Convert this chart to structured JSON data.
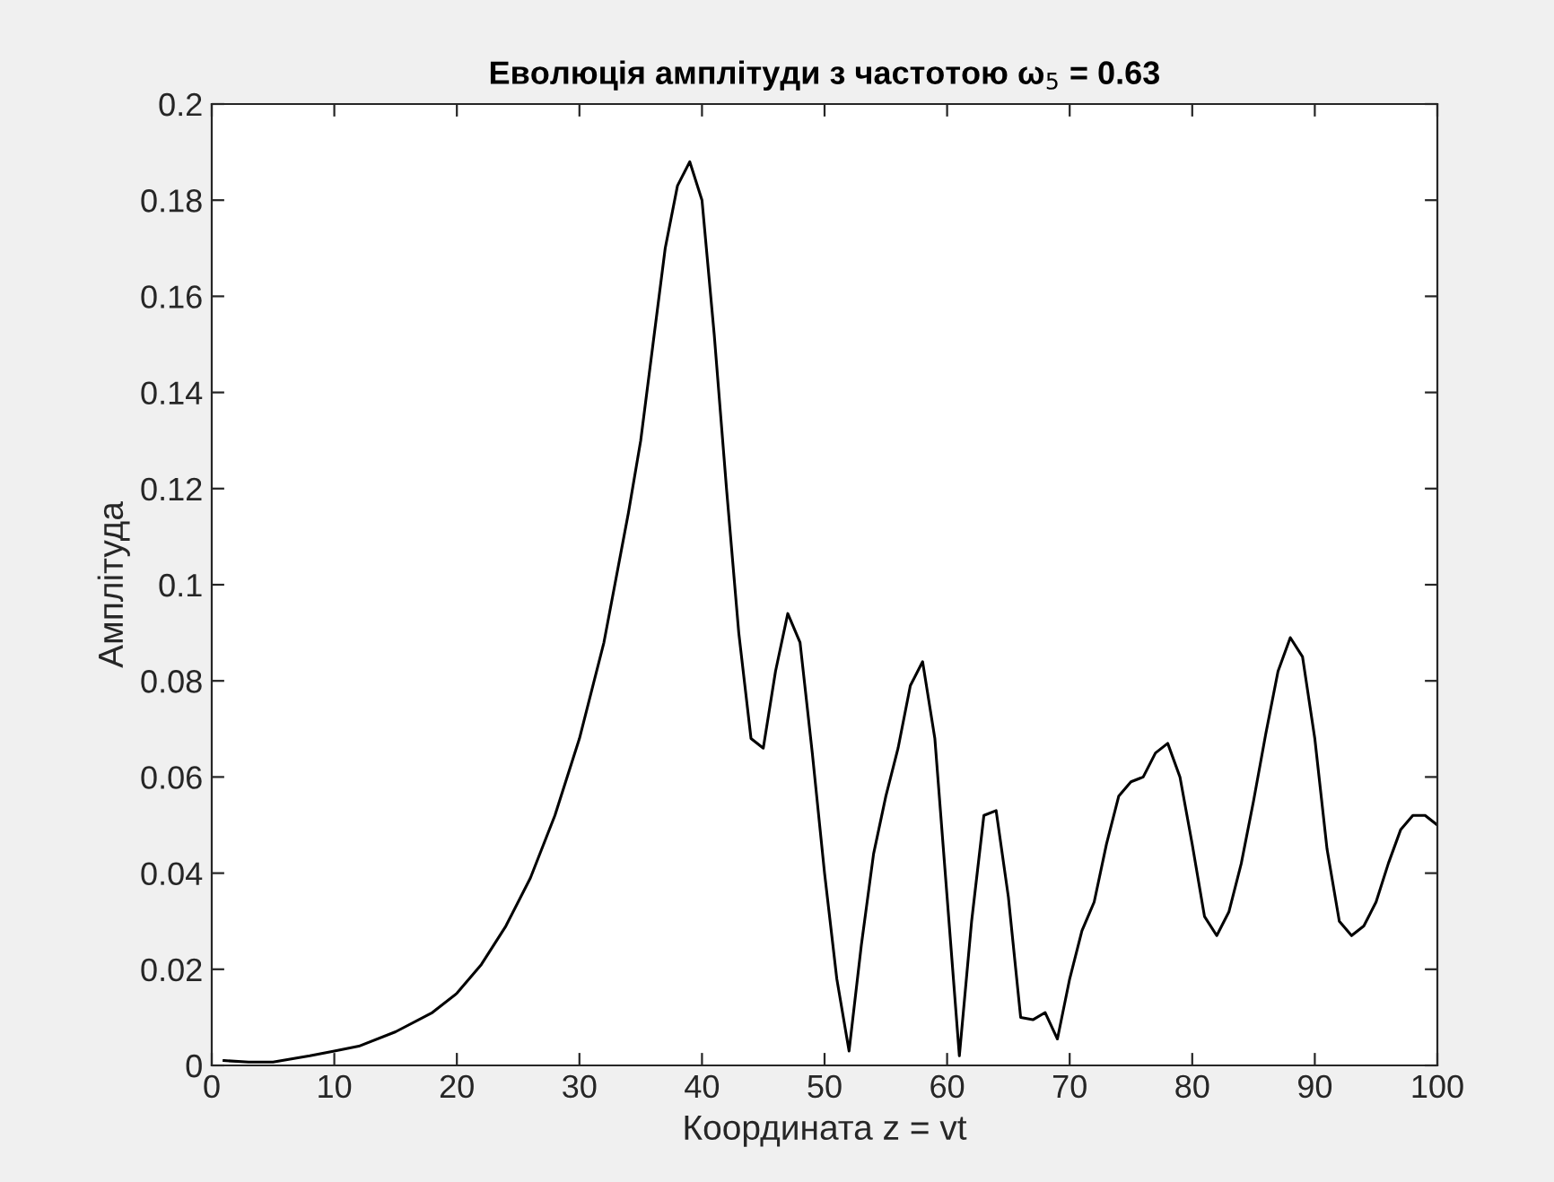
{
  "chart_data": {
    "type": "line",
    "title": "Еволюція амплітуди з частотою ω$_{5}$ = 0.63",
    "xlabel": "Координата z = vt",
    "ylabel": "Амплітуда",
    "x": [
      1,
      3,
      5,
      8,
      10,
      12,
      15,
      18,
      20,
      22,
      24,
      26,
      28,
      30,
      32,
      34,
      35,
      36,
      37,
      38,
      39,
      40,
      41,
      42,
      43,
      44,
      45,
      46,
      47,
      48,
      49,
      50,
      51,
      52,
      53,
      54,
      55,
      56,
      57,
      58,
      59,
      60,
      61,
      62,
      63,
      64,
      65,
      66,
      67,
      68,
      69,
      70,
      71,
      72,
      73,
      74,
      75,
      76,
      77,
      78,
      79,
      80,
      81,
      82,
      83,
      84,
      85,
      86,
      87,
      88,
      89,
      90,
      91,
      92,
      93,
      94,
      95,
      96,
      97,
      98,
      99,
      100
    ],
    "series": [
      {
        "color": "#000000",
        "values": [
          0.001,
          0.0007,
          0.0007,
          0.002,
          0.003,
          0.004,
          0.007,
          0.011,
          0.015,
          0.021,
          0.029,
          0.039,
          0.052,
          0.068,
          0.088,
          0.115,
          0.13,
          0.15,
          0.17,
          0.183,
          0.188,
          0.18,
          0.152,
          0.12,
          0.09,
          0.068,
          0.066,
          0.082,
          0.094,
          0.088,
          0.065,
          0.04,
          0.018,
          0.003,
          0.025,
          0.044,
          0.056,
          0.066,
          0.079,
          0.084,
          0.068,
          0.035,
          0.002,
          0.03,
          0.052,
          0.053,
          0.035,
          0.01,
          0.0095,
          0.011,
          0.0055,
          0.018,
          0.028,
          0.034,
          0.046,
          0.056,
          0.059,
          0.06,
          0.065,
          0.067,
          0.06,
          0.046,
          0.031,
          0.027,
          0.032,
          0.042,
          0.055,
          0.069,
          0.082,
          0.089,
          0.085,
          0.068,
          0.045,
          0.03,
          0.027,
          0.029,
          0.034,
          0.042,
          0.049,
          0.052,
          0.052,
          0.05
        ]
      }
    ],
    "xlim": [
      0,
      100
    ],
    "xticks": [
      0,
      10,
      20,
      30,
      40,
      50,
      60,
      70,
      80,
      90,
      100
    ],
    "ylim": [
      0,
      0.2
    ],
    "yticks": [
      0,
      0.02,
      0.04,
      0.06,
      0.08,
      0.1,
      0.12,
      0.14,
      0.16,
      0.18,
      0.2
    ],
    "grid": false,
    "legend": false,
    "marker": "none",
    "line_style": "solid"
  }
}
